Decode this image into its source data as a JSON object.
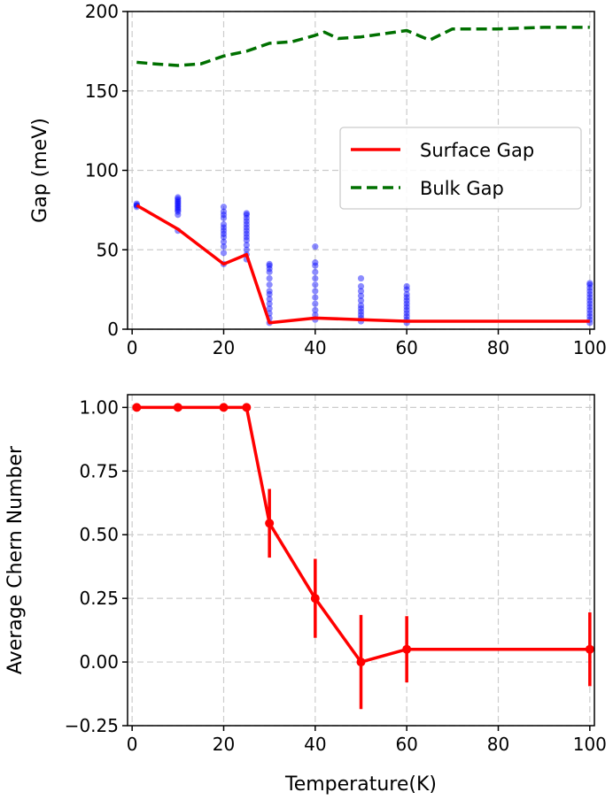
{
  "colors": {
    "surface": "#ff0000",
    "bulk": "#007000",
    "scatter": "#0000ff",
    "grid": "#cccccc"
  },
  "chart_data": [
    {
      "type": "line",
      "xlabel": "",
      "ylabel": "Gap (meV)",
      "xlim": [
        -1,
        101
      ],
      "ylim": [
        0,
        200
      ],
      "xticks": [
        0,
        20,
        40,
        60,
        80,
        100
      ],
      "yticks": [
        0,
        50,
        100,
        150,
        200
      ],
      "xtick_labels": [
        "0",
        "20",
        "40",
        "60",
        "80",
        "100"
      ],
      "ytick_labels": [
        "0",
        "50",
        "100",
        "150",
        "200"
      ],
      "grid": true,
      "legend_position": "center-right",
      "series": [
        {
          "name": "Surface Gap",
          "style": "solid",
          "color": "#ff0000",
          "x": [
            1,
            10,
            20,
            25,
            30,
            40,
            50,
            60,
            100
          ],
          "y": [
            78,
            63,
            41,
            47,
            4,
            7,
            6,
            5,
            5
          ]
        },
        {
          "name": "Bulk Gap",
          "style": "dashed",
          "color": "#007000",
          "x": [
            1,
            5,
            10,
            15,
            20,
            25,
            30,
            35,
            40,
            42,
            45,
            50,
            55,
            60,
            65,
            70,
            80,
            90,
            100
          ],
          "y": [
            168,
            167,
            166,
            167,
            172,
            175,
            180,
            181,
            185,
            187,
            183,
            184,
            186,
            188,
            182,
            189,
            189,
            190,
            190
          ]
        }
      ],
      "scatter": {
        "color": "#0000ff",
        "points": [
          {
            "x": 1,
            "y": [
              77,
              78,
              78,
              79
            ]
          },
          {
            "x": 10,
            "y": [
              62,
              72,
              74,
              75,
              76,
              77,
              78,
              79,
              80,
              81,
              82,
              83
            ]
          },
          {
            "x": 20,
            "y": [
              41,
              48,
              52,
              55,
              58,
              60,
              62,
              64,
              66,
              70,
              72,
              74,
              77
            ]
          },
          {
            "x": 25,
            "y": [
              44,
              47,
              50,
              53,
              56,
              58,
              60,
              62,
              64,
              66,
              68,
              70,
              72,
              73
            ]
          },
          {
            "x": 30,
            "y": [
              4,
              7,
              10,
              13,
              16,
              19,
              22,
              24,
              28,
              32,
              36,
              38,
              40,
              41
            ]
          },
          {
            "x": 40,
            "y": [
              6,
              9,
              12,
              16,
              20,
              24,
              28,
              32,
              36,
              40,
              42,
              52
            ]
          },
          {
            "x": 50,
            "y": [
              5,
              7,
              9,
              11,
              13,
              15,
              18,
              21,
              24,
              27,
              32
            ]
          },
          {
            "x": 60,
            "y": [
              4,
              6,
              8,
              10,
              12,
              14,
              16,
              18,
              20,
              22,
              25,
              27
            ]
          },
          {
            "x": 100,
            "y": [
              4,
              6,
              8,
              10,
              12,
              14,
              16,
              18,
              20,
              22,
              24,
              26,
              28,
              29
            ]
          }
        ]
      }
    },
    {
      "type": "line",
      "xlabel": "Temperature(K)",
      "ylabel": "Average Chern Number",
      "xlim": [
        -1,
        101
      ],
      "ylim": [
        -0.25,
        1.05
      ],
      "xticks": [
        0,
        20,
        40,
        60,
        80,
        100
      ],
      "yticks": [
        -0.25,
        0,
        0.25,
        0.5,
        0.75,
        1.0
      ],
      "xtick_labels": [
        "0",
        "20",
        "40",
        "60",
        "80",
        "100"
      ],
      "ytick_labels": [
        "−0.25",
        "0.00",
        "0.25",
        "0.50",
        "0.75",
        "1.00"
      ],
      "grid": true,
      "series": [
        {
          "color": "#ff0000",
          "marker": "circle",
          "x": [
            1,
            10,
            20,
            25,
            30,
            40,
            50,
            60,
            100
          ],
          "y": [
            1.0,
            1.0,
            1.0,
            1.0,
            0.545,
            0.25,
            0.0,
            0.05,
            0.05
          ],
          "yerr": [
            0,
            0,
            0,
            0,
            0.135,
            0.155,
            0.185,
            0.13,
            0.145
          ]
        }
      ]
    }
  ]
}
